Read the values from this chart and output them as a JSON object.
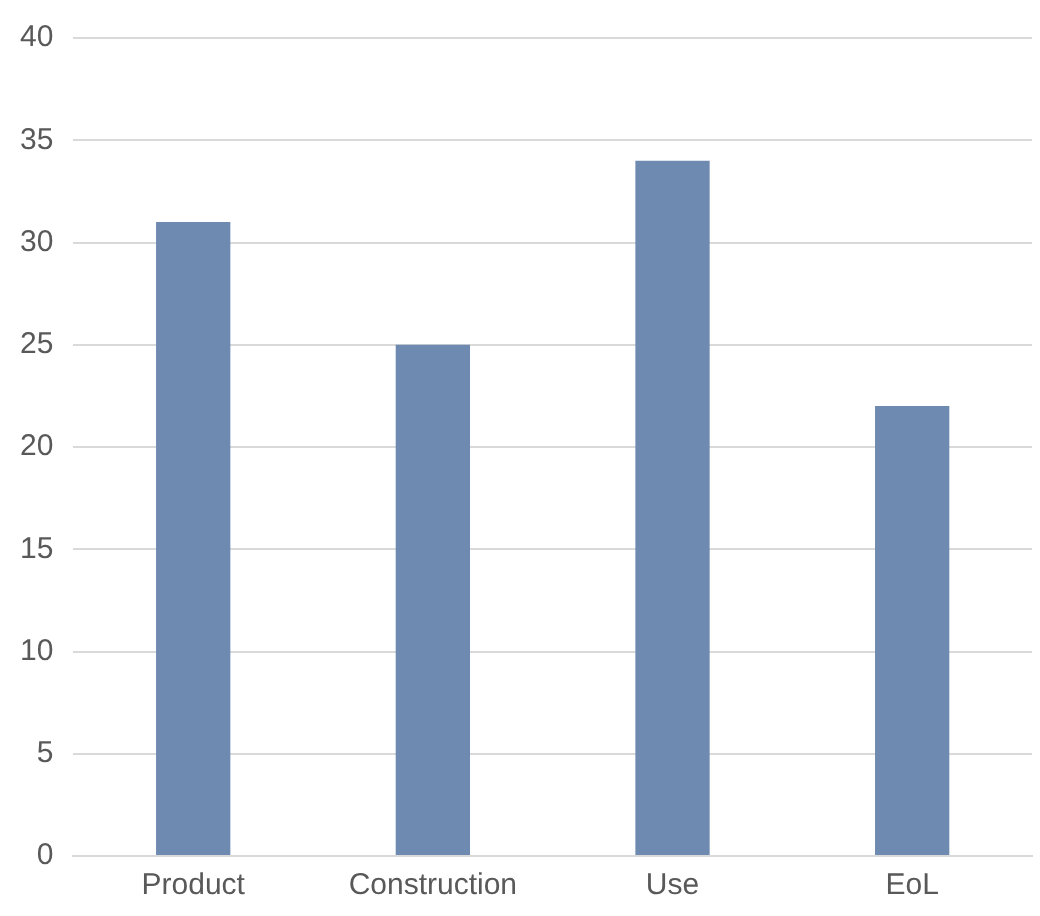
{
  "chart_data": {
    "type": "bar",
    "categories": [
      "Product",
      "Construction",
      "Use",
      "EoL"
    ],
    "values": [
      31,
      25,
      34,
      22
    ],
    "color": "#6f8ab0",
    "ylim": [
      0,
      40
    ],
    "yticks": [
      0,
      5,
      10,
      15,
      20,
      25,
      30,
      35,
      40
    ],
    "grid": "y"
  }
}
